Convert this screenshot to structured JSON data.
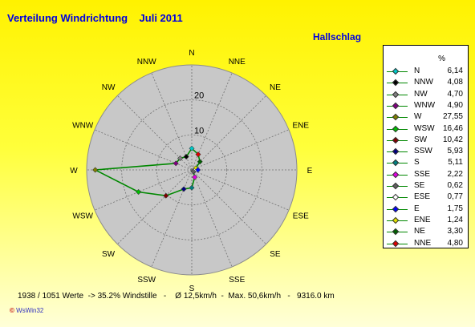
{
  "title": "Verteilung Windrichtung    Juli 2011",
  "station": "Hallschlag",
  "legend_unit": "%",
  "footer": "1938 / 1051 Werte  -> 35.2% Windstille   -    Ø 12,5km/h  -  Max. 50,6km/h   -   9316.0 km",
  "logo": "WsWin32",
  "chart_data": {
    "type": "radar",
    "title": "Verteilung Windrichtung Juli 2011",
    "series_name": "Hallschlag",
    "unit": "%",
    "rlim": [
      0,
      30
    ],
    "r_ticks": [
      10,
      20
    ],
    "grid": true,
    "legend_position": "right",
    "line_color": "#008800",
    "directions": [
      "N",
      "NNE",
      "NE",
      "ENE",
      "E",
      "ESE",
      "SE",
      "SSE",
      "S",
      "SSW",
      "SW",
      "WSW",
      "W",
      "WNW",
      "NW",
      "NNW"
    ],
    "values": [
      6.14,
      4.8,
      3.3,
      1.24,
      1.75,
      0.77,
      0.62,
      2.22,
      5.11,
      5.93,
      10.42,
      16.46,
      27.55,
      4.9,
      4.7,
      4.08
    ],
    "legend": [
      {
        "name": "N",
        "value": "6,14",
        "color": "#00c8c8"
      },
      {
        "name": "NNW",
        "value": "4,08",
        "color": "#000000"
      },
      {
        "name": "NW",
        "value": "4,70",
        "color": "#808080"
      },
      {
        "name": "WNW",
        "value": "4,90",
        "color": "#800080"
      },
      {
        "name": "W",
        "value": "27,55",
        "color": "#808000"
      },
      {
        "name": "WSW",
        "value": "16,46",
        "color": "#00c000"
      },
      {
        "name": "SW",
        "value": "10,42",
        "color": "#800000"
      },
      {
        "name": "SSW",
        "value": "5,93",
        "color": "#000080"
      },
      {
        "name": "S",
        "value": "5,11",
        "color": "#008080"
      },
      {
        "name": "SSE",
        "value": "2,22",
        "color": "#e000e0"
      },
      {
        "name": "SE",
        "value": "0,62",
        "color": "#606060"
      },
      {
        "name": "ESE",
        "value": "0,77",
        "color": "#ffffff"
      },
      {
        "name": "E",
        "value": "1,75",
        "color": "#0000ff"
      },
      {
        "name": "ENE",
        "value": "1,24",
        "color": "#e0e000"
      },
      {
        "name": "NE",
        "value": "3,30",
        "color": "#006000"
      },
      {
        "name": "NNE",
        "value": "4,80",
        "color": "#e00000"
      }
    ]
  }
}
